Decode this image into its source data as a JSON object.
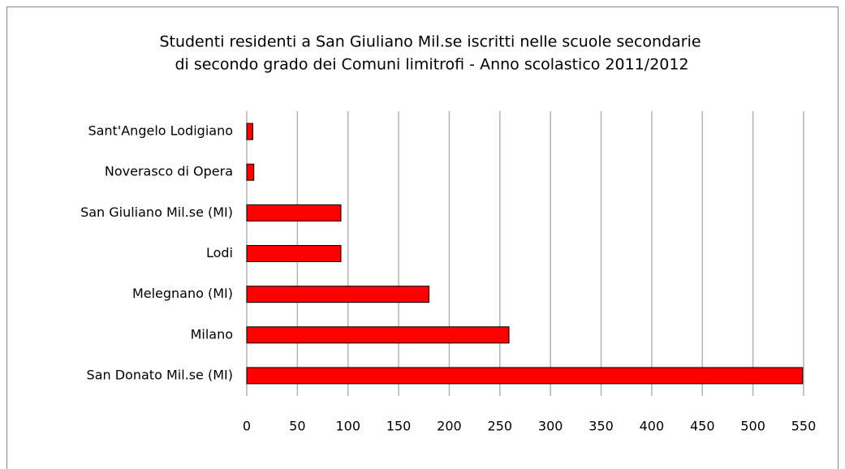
{
  "chart_data": {
    "type": "bar",
    "orientation": "horizontal",
    "title": [
      "Studenti residenti a San Giuliano Mil.se iscritti nelle scuole secondarie",
      "di secondo grado dei Comuni limitrofi - Anno scolastico 2011/2012"
    ],
    "categories": [
      "Sant'Angelo Lodigiano",
      "Noverasco di Opera",
      "San Giuliano Mil.se (MI)",
      "Lodi",
      "Melegnano (MI)",
      "Milano",
      "San Donato Mil.se (MI)"
    ],
    "values": [
      6,
      7,
      93,
      93,
      180,
      259,
      549
    ],
    "color": "#ff0000",
    "xlim": [
      0,
      550
    ],
    "xticks": [
      0,
      50,
      100,
      150,
      200,
      250,
      300,
      350,
      400,
      450,
      500,
      550
    ],
    "grid": true
  }
}
